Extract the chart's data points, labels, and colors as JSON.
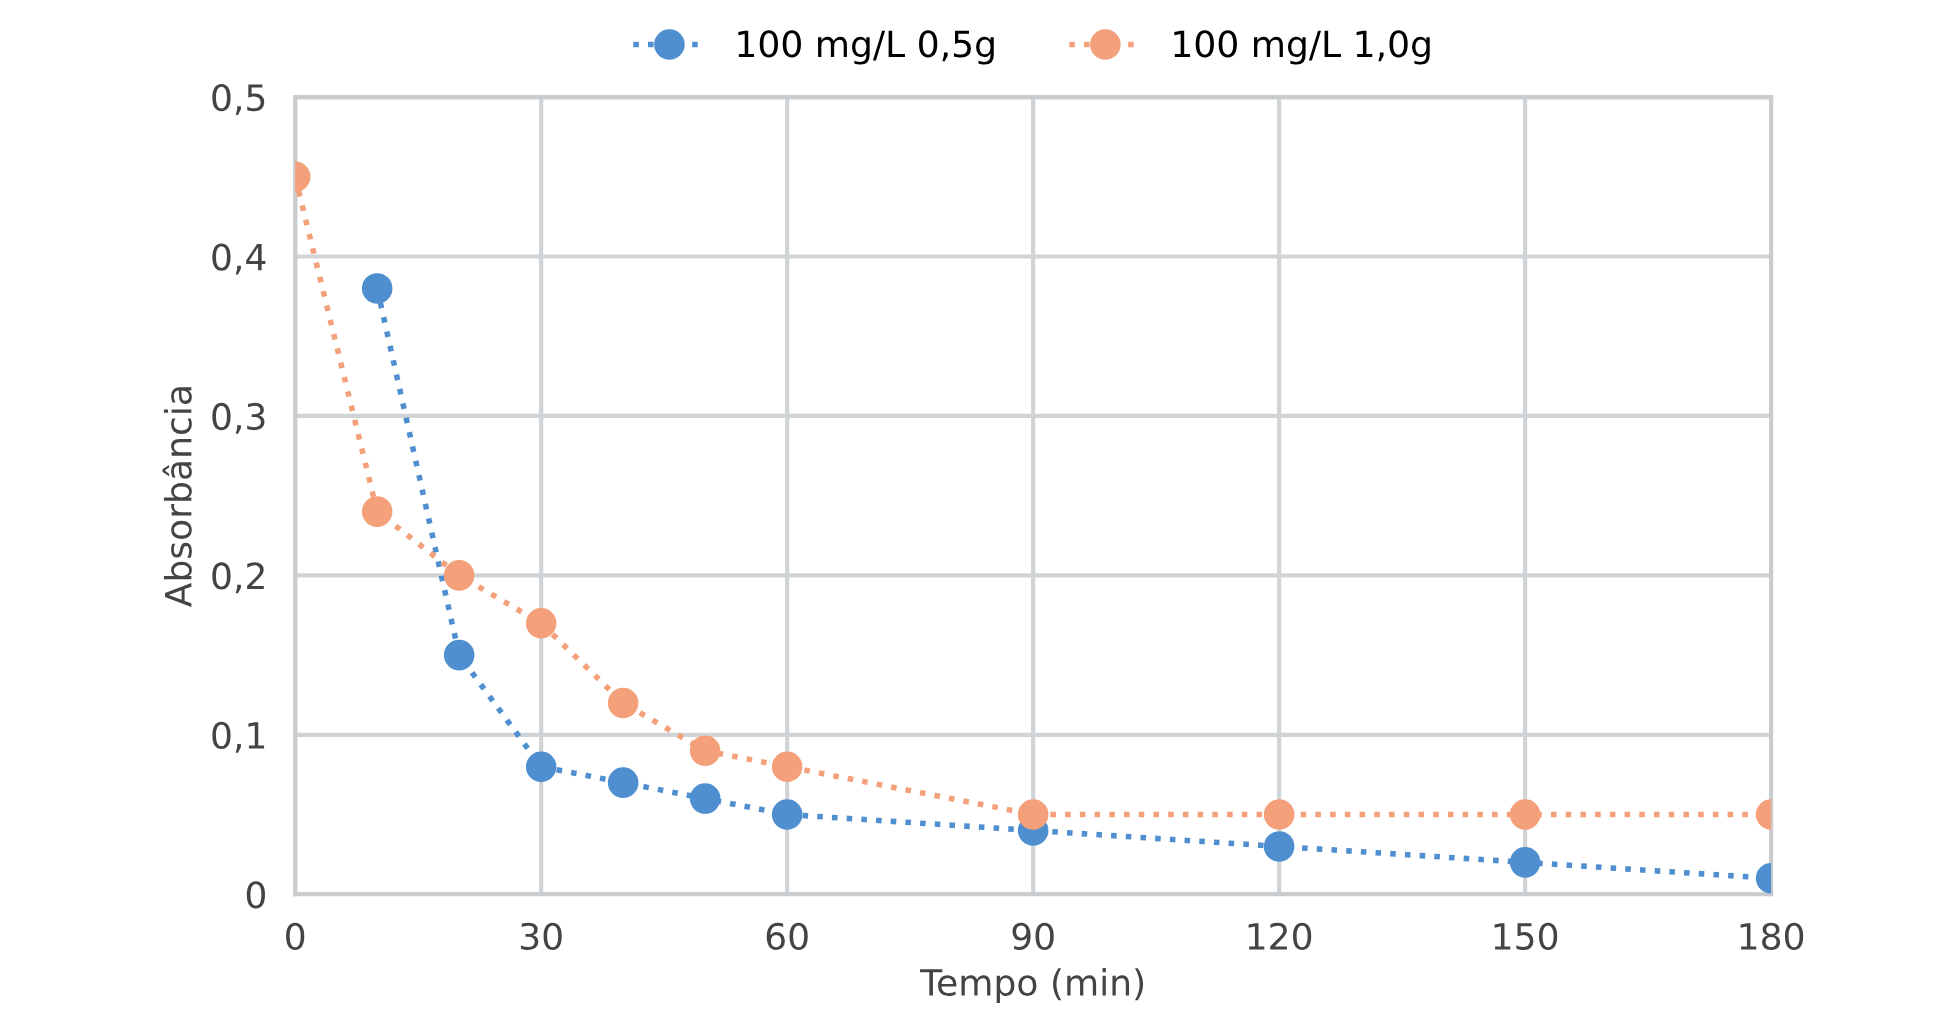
{
  "chart_data": {
    "type": "line",
    "xlabel": "Tempo (min)",
    "ylabel": "Absorbância",
    "x": [
      0,
      10,
      20,
      30,
      40,
      50,
      60,
      90,
      120,
      150,
      180
    ],
    "series": [
      {
        "name": "100 mg/L 0,5g",
        "color": "#4f8fd0",
        "values": [
          null,
          0.38,
          0.15,
          0.08,
          0.07,
          0.06,
          0.05,
          0.04,
          0.03,
          0.02,
          0.01
        ]
      },
      {
        "name": "100 mg/L 1,0g",
        "color": "#f4a07a",
        "values": [
          0.45,
          0.24,
          0.2,
          0.17,
          0.12,
          0.09,
          0.08,
          0.05,
          0.05,
          0.05,
          0.05
        ]
      }
    ],
    "xlim": [
      0,
      180
    ],
    "xticks": [
      0,
      30,
      60,
      90,
      120,
      150,
      180
    ],
    "ylim": [
      0,
      0.5
    ],
    "yticks": [
      0,
      {
        "value": 0.1,
        "label": "0,1"
      },
      {
        "value": 0.2,
        "label": "0,2"
      },
      {
        "value": 0.3,
        "label": "0,3"
      },
      {
        "value": 0.4,
        "label": "0,4"
      },
      {
        "value": 0.5,
        "label": "0,5"
      }
    ],
    "grid": true,
    "legend": "top",
    "marker": "circle",
    "line_style": "dotted"
  }
}
